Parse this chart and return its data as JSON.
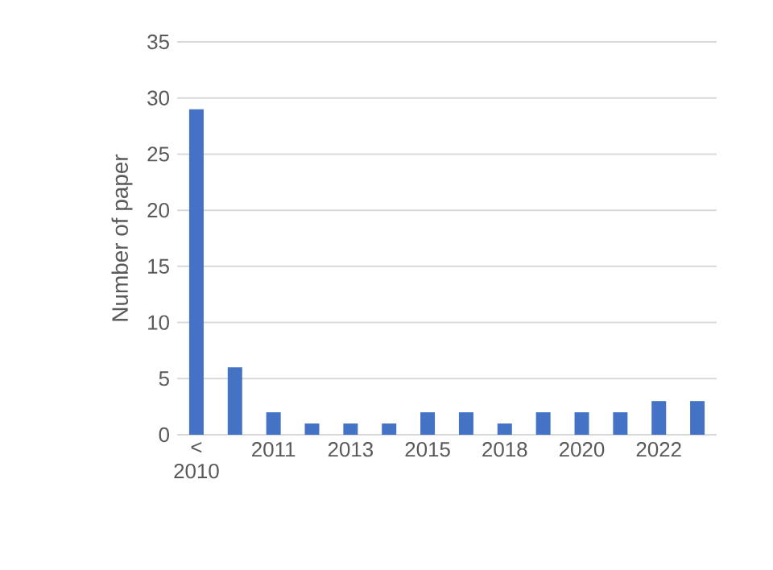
{
  "chart_data": {
    "type": "bar",
    "ylabel": "Number of paper",
    "categories": [
      "< 2010",
      null,
      "2011",
      null,
      "2013",
      null,
      "2015",
      null,
      "2018",
      null,
      "2020",
      null,
      "2022",
      null
    ],
    "values": [
      29,
      6,
      2,
      1,
      1,
      1,
      2,
      2,
      1,
      2,
      2,
      2,
      3,
      3
    ],
    "color": "#4472c4",
    "ylim": [
      0,
      35
    ],
    "yticks": [
      0,
      5,
      10,
      15,
      20,
      25,
      30,
      35
    ],
    "grid": "y"
  }
}
